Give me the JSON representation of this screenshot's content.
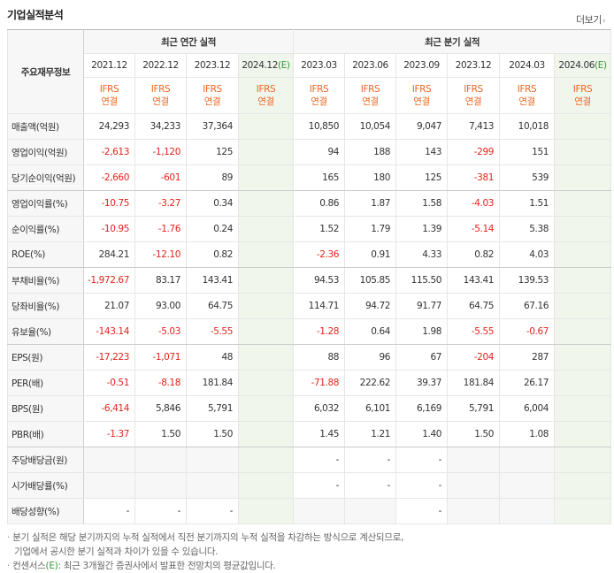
{
  "header": {
    "title": "기업실적분석",
    "more_label": "더보기",
    "more_icon": "chevron-right-icon"
  },
  "table": {
    "corner_label": "주요재무정보",
    "group_labels": [
      "최근 연간 실적",
      "최근 분기 실적"
    ],
    "periods": [
      "2021.12",
      "2022.12",
      "2023.12",
      "2024.12",
      "2023.03",
      "2023.06",
      "2023.09",
      "2023.12",
      "2024.03",
      "2024.06"
    ],
    "estimate_marker": "(E)",
    "ifrs_top": "IFRS",
    "ifrs_bottom": "연결",
    "rows": [
      {
        "label": "매출액(억원)",
        "values": [
          "24,293",
          "34,233",
          "37,364",
          "",
          "10,850",
          "10,054",
          "9,047",
          "7,413",
          "10,018",
          ""
        ]
      },
      {
        "label": "영업이익(억원)",
        "values": [
          "-2,613",
          "-1,120",
          "125",
          "",
          "94",
          "188",
          "143",
          "-299",
          "151",
          ""
        ]
      },
      {
        "label": "당기순이익(억원)",
        "values": [
          "-2,660",
          "-601",
          "89",
          "",
          "165",
          "180",
          "125",
          "-381",
          "539",
          ""
        ]
      },
      {
        "label": "영업이익률(%)",
        "values": [
          "-10.75",
          "-3.27",
          "0.34",
          "",
          "0.86",
          "1.87",
          "1.58",
          "-4.03",
          "1.51",
          ""
        ]
      },
      {
        "label": "순이익률(%)",
        "values": [
          "-10.95",
          "-1.76",
          "0.24",
          "",
          "1.52",
          "1.79",
          "1.39",
          "-5.14",
          "5.38",
          ""
        ]
      },
      {
        "label": "ROE(%)",
        "values": [
          "284.21",
          "-12.10",
          "0.82",
          "",
          "-2.36",
          "0.91",
          "4.33",
          "0.82",
          "4.03",
          ""
        ]
      },
      {
        "label": "부채비율(%)",
        "values": [
          "-1,972.67",
          "83.17",
          "143.41",
          "",
          "94.53",
          "105.85",
          "115.50",
          "143.41",
          "139.53",
          ""
        ]
      },
      {
        "label": "당좌비율(%)",
        "values": [
          "21.07",
          "93.00",
          "64.75",
          "",
          "114.71",
          "94.72",
          "91.77",
          "64.75",
          "67.16",
          ""
        ]
      },
      {
        "label": "유보율(%)",
        "values": [
          "-143.14",
          "-5.03",
          "-5.55",
          "",
          "-1.28",
          "0.64",
          "1.98",
          "-5.55",
          "-0.67",
          ""
        ]
      },
      {
        "label": "EPS(원)",
        "values": [
          "-17,223",
          "-1,071",
          "48",
          "",
          "88",
          "96",
          "67",
          "-204",
          "287",
          ""
        ]
      },
      {
        "label": "PER(배)",
        "values": [
          "-0.51",
          "-8.18",
          "181.84",
          "",
          "-71.88",
          "222.62",
          "39.37",
          "181.84",
          "26.17",
          ""
        ]
      },
      {
        "label": "BPS(원)",
        "values": [
          "-6,414",
          "5,846",
          "5,791",
          "",
          "6,032",
          "6,101",
          "6,169",
          "5,791",
          "6,004",
          ""
        ]
      },
      {
        "label": "PBR(배)",
        "values": [
          "-1.37",
          "1.50",
          "1.50",
          "",
          "1.45",
          "1.21",
          "1.40",
          "1.50",
          "1.08",
          ""
        ]
      },
      {
        "label": "주당배당금(원)",
        "values": [
          "",
          "",
          "",
          "",
          "-",
          "-",
          "-",
          "",
          "",
          ""
        ]
      },
      {
        "label": "시가배당률(%)",
        "values": [
          "",
          "",
          "",
          "",
          "-",
          "-",
          "-",
          "",
          "",
          ""
        ]
      },
      {
        "label": "배당성향(%)",
        "values": [
          "-",
          "-",
          "-",
          "",
          "",
          "",
          "-",
          "",
          "",
          ""
        ]
      }
    ]
  },
  "notes": {
    "line1": "분기 실적은 해당 분기까지의 누적 실적에서 직전 분기까지의 누적 실적을 차감하는 방식으로 계산되므로,",
    "line2": "기업에서 공시한 분기 실적과 차이가 있을 수 있습니다.",
    "line3_prefix": "컨센서스",
    "line3_marker": "(E)",
    "line3_suffix": ": 최근 3개월간 증권사에서 발표한 전망치의 평균값입니다."
  },
  "colors": {
    "negative": "#e1241b",
    "ifrs": "#ee6622",
    "estimate_bg": "#f0f6ec",
    "estimate_text": "#3a9a3a"
  }
}
